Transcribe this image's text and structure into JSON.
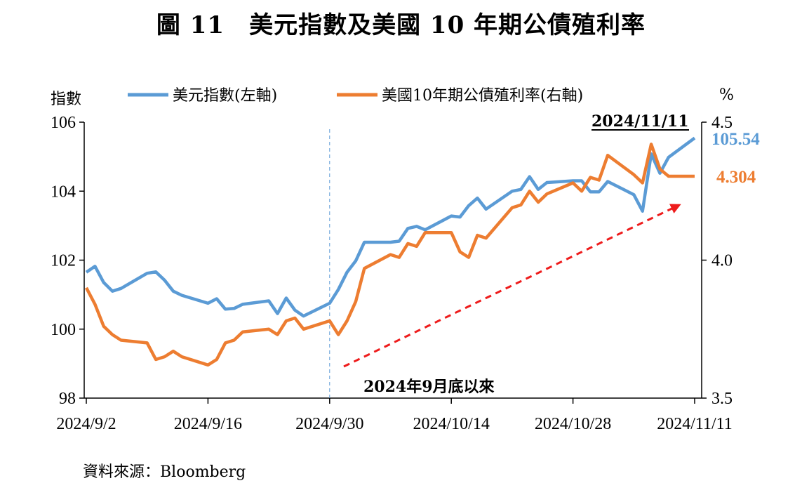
{
  "title": "圖 11　美元指數及美國 10 年期公債殖利率",
  "source": "資料來源：Bloomberg",
  "chart_data": {
    "type": "line",
    "left_axis_label": "指數",
    "right_axis_label": "%",
    "y_left": {
      "min": 98,
      "max": 106,
      "ticks": [
        98,
        100,
        102,
        104,
        106
      ]
    },
    "y_right": {
      "min": 3.5,
      "max": 4.5,
      "ticks": [
        3.5,
        4.0,
        4.5
      ]
    },
    "x_ticks": [
      "2024/9/2",
      "2024/9/16",
      "2024/9/30",
      "2024/10/14",
      "2024/10/28",
      "2024/11/11"
    ],
    "series": [
      {
        "name": "美元指數(左軸)",
        "axis": "left",
        "color": "#5b9bd5",
        "end_label": "105.54",
        "points": [
          [
            "2024/9/2",
            101.65
          ],
          [
            "2024/9/3",
            101.82
          ],
          [
            "2024/9/4",
            101.35
          ],
          [
            "2024/9/5",
            101.1
          ],
          [
            "2024/9/6",
            101.18
          ],
          [
            "2024/9/9",
            101.62
          ],
          [
            "2024/9/10",
            101.66
          ],
          [
            "2024/9/11",
            101.42
          ],
          [
            "2024/9/12",
            101.1
          ],
          [
            "2024/9/13",
            100.98
          ],
          [
            "2024/9/16",
            100.75
          ],
          [
            "2024/9/17",
            100.88
          ],
          [
            "2024/9/18",
            100.58
          ],
          [
            "2024/9/19",
            100.6
          ],
          [
            "2024/9/20",
            100.72
          ],
          [
            "2024/9/23",
            100.82
          ],
          [
            "2024/9/24",
            100.45
          ],
          [
            "2024/9/25",
            100.9
          ],
          [
            "2024/9/26",
            100.55
          ],
          [
            "2024/9/27",
            100.38
          ],
          [
            "2024/9/30",
            100.75
          ],
          [
            "2024/10/1",
            101.15
          ],
          [
            "2024/10/2",
            101.65
          ],
          [
            "2024/10/3",
            101.98
          ],
          [
            "2024/10/4",
            102.52
          ],
          [
            "2024/10/7",
            102.52
          ],
          [
            "2024/10/8",
            102.55
          ],
          [
            "2024/10/9",
            102.92
          ],
          [
            "2024/10/10",
            102.98
          ],
          [
            "2024/10/11",
            102.88
          ],
          [
            "2024/10/14",
            103.28
          ],
          [
            "2024/10/15",
            103.25
          ],
          [
            "2024/10/16",
            103.58
          ],
          [
            "2024/10/17",
            103.8
          ],
          [
            "2024/10/18",
            103.48
          ],
          [
            "2024/10/21",
            104.0
          ],
          [
            "2024/10/22",
            104.05
          ],
          [
            "2024/10/23",
            104.42
          ],
          [
            "2024/10/24",
            104.05
          ],
          [
            "2024/10/25",
            104.25
          ],
          [
            "2024/10/28",
            104.3
          ],
          [
            "2024/10/29",
            104.3
          ],
          [
            "2024/10/30",
            103.98
          ],
          [
            "2024/10/31",
            103.98
          ],
          [
            "2024/11/1",
            104.28
          ],
          [
            "2024/11/4",
            103.9
          ],
          [
            "2024/11/5",
            103.42
          ],
          [
            "2024/11/6",
            105.08
          ],
          [
            "2024/11/7",
            104.52
          ],
          [
            "2024/11/8",
            104.98
          ],
          [
            "2024/11/11",
            105.54
          ]
        ]
      },
      {
        "name": "美國10年期公債殖利率(右軸)",
        "axis": "right",
        "color": "#ed7d31",
        "end_label": "4.304",
        "points": [
          [
            "2024/9/2",
            3.9
          ],
          [
            "2024/9/3",
            3.84
          ],
          [
            "2024/9/4",
            3.76
          ],
          [
            "2024/9/5",
            3.73
          ],
          [
            "2024/9/6",
            3.71
          ],
          [
            "2024/9/9",
            3.7
          ],
          [
            "2024/9/10",
            3.64
          ],
          [
            "2024/9/11",
            3.65
          ],
          [
            "2024/9/12",
            3.67
          ],
          [
            "2024/9/13",
            3.65
          ],
          [
            "2024/9/16",
            3.62
          ],
          [
            "2024/9/17",
            3.64
          ],
          [
            "2024/9/18",
            3.7
          ],
          [
            "2024/9/19",
            3.71
          ],
          [
            "2024/9/20",
            3.74
          ],
          [
            "2024/9/23",
            3.75
          ],
          [
            "2024/9/24",
            3.73
          ],
          [
            "2024/9/25",
            3.78
          ],
          [
            "2024/9/26",
            3.79
          ],
          [
            "2024/9/27",
            3.75
          ],
          [
            "2024/9/30",
            3.78
          ],
          [
            "2024/10/1",
            3.73
          ],
          [
            "2024/10/2",
            3.78
          ],
          [
            "2024/10/3",
            3.85
          ],
          [
            "2024/10/4",
            3.97
          ],
          [
            "2024/10/7",
            4.02
          ],
          [
            "2024/10/8",
            4.01
          ],
          [
            "2024/10/9",
            4.06
          ],
          [
            "2024/10/10",
            4.05
          ],
          [
            "2024/10/11",
            4.1
          ],
          [
            "2024/10/14",
            4.1
          ],
          [
            "2024/10/15",
            4.03
          ],
          [
            "2024/10/16",
            4.01
          ],
          [
            "2024/10/17",
            4.09
          ],
          [
            "2024/10/18",
            4.08
          ],
          [
            "2024/10/21",
            4.19
          ],
          [
            "2024/10/22",
            4.2
          ],
          [
            "2024/10/23",
            4.25
          ],
          [
            "2024/10/24",
            4.21
          ],
          [
            "2024/10/25",
            4.24
          ],
          [
            "2024/10/28",
            4.28
          ],
          [
            "2024/10/29",
            4.25
          ],
          [
            "2024/10/30",
            4.3
          ],
          [
            "2024/10/31",
            4.29
          ],
          [
            "2024/11/1",
            4.38
          ],
          [
            "2024/11/4",
            4.31
          ],
          [
            "2024/11/5",
            4.28
          ],
          [
            "2024/11/6",
            4.42
          ],
          [
            "2024/11/7",
            4.33
          ],
          [
            "2024/11/8",
            4.304
          ],
          [
            "2024/11/11",
            4.304
          ]
        ]
      }
    ],
    "annotations": {
      "date_label": "2024/11/11",
      "trend_label": "2024年9月底以來",
      "vline_date": "2024/9/30",
      "trend_arrow_color": "#ee1c1c"
    },
    "legend_position": "top",
    "grid": false
  }
}
